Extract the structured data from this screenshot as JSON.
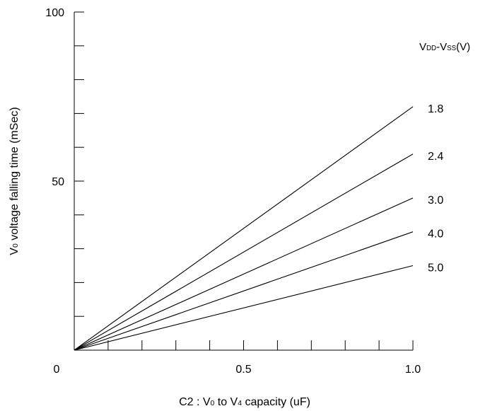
{
  "chart_data": {
    "type": "line",
    "title": "",
    "xlabel": {
      "parts": [
        {
          "text": "C2 : V",
          "sub": false
        },
        {
          "text": "0",
          "sub": true
        },
        {
          "text": " to V",
          "sub": false
        },
        {
          "text": "4",
          "sub": true
        },
        {
          "text": " capacity (uF)",
          "sub": false
        }
      ]
    },
    "ylabel": {
      "parts": [
        {
          "text": "V",
          "sub": false
        },
        {
          "text": "0",
          "sub": true
        },
        {
          "text": " voltage falling time (mSec)",
          "sub": false
        }
      ]
    },
    "legend_title": {
      "parts": [
        {
          "text": "V",
          "sub": false
        },
        {
          "text": "DD",
          "sub": true
        },
        {
          "text": "-V",
          "sub": false
        },
        {
          "text": "SS",
          "sub": true
        },
        {
          "text": "(V)",
          "sub": false
        }
      ]
    },
    "xlim": [
      0,
      1.0
    ],
    "ylim": [
      0,
      100
    ],
    "x_tick_labels": [
      {
        "value": 0,
        "label": "0"
      },
      {
        "value": 0.5,
        "label": "0.5"
      },
      {
        "value": 1.0,
        "label": "1.0"
      }
    ],
    "x_minor_ticks": [
      0.1,
      0.2,
      0.3,
      0.4,
      0.5,
      0.6,
      0.7,
      0.8,
      0.9,
      1.0
    ],
    "y_tick_labels": [
      {
        "value": 50,
        "label": "50"
      },
      {
        "value": 100,
        "label": "100"
      }
    ],
    "y_minor_ticks": [
      10,
      20,
      30,
      40,
      50,
      60,
      70,
      80,
      90,
      100
    ],
    "grid": false,
    "series": [
      {
        "name": "1.8",
        "x": [
          0,
          1.0
        ],
        "y": [
          0,
          72
        ]
      },
      {
        "name": "2.4",
        "x": [
          0,
          1.0
        ],
        "y": [
          0,
          58
        ]
      },
      {
        "name": "3.0",
        "x": [
          0,
          1.0
        ],
        "y": [
          0,
          45
        ]
      },
      {
        "name": "4.0",
        "x": [
          0,
          1.0
        ],
        "y": [
          0,
          35
        ]
      },
      {
        "name": "5.0",
        "x": [
          0,
          1.0
        ],
        "y": [
          0,
          25
        ]
      }
    ]
  }
}
